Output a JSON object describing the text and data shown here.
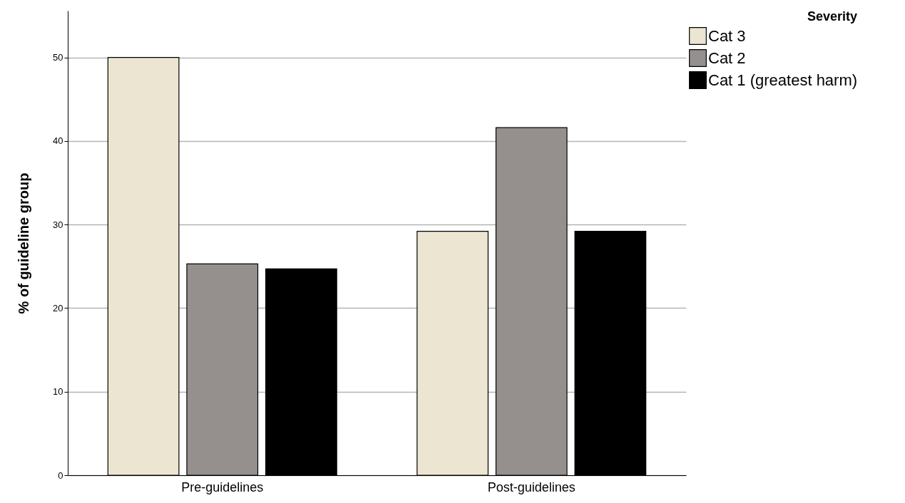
{
  "chart_data": {
    "type": "bar",
    "ylabel": "% of guideline group",
    "legend_title": "Severity",
    "categories": [
      "Pre-guidelines",
      "Post-guidelines"
    ],
    "series": [
      {
        "name": "Cat 3",
        "color": "#ebe5d1",
        "values": [
          50,
          29.2
        ]
      },
      {
        "name": "Cat 2",
        "color": "#958f8e",
        "values": [
          25.3,
          41.6
        ]
      },
      {
        "name": "Cat 1 (greatest harm)",
        "color": "#000000",
        "values": [
          24.7,
          29.2
        ]
      }
    ],
    "ylim": [
      0,
      55.6
    ],
    "yticks": [
      0,
      10,
      20,
      30,
      40,
      50
    ],
    "grid": "y",
    "legend": "top right"
  }
}
